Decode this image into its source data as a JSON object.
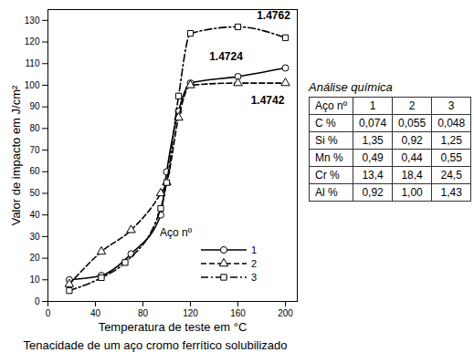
{
  "chart_data": {
    "type": "line",
    "title": "Tenacidade de um aço cromo ferrítico solubilizado",
    "x_label": "Temperatura de teste em °C",
    "y_label": "Valor de impacto em J/cm²",
    "xlim": [
      0,
      210
    ],
    "xticks": [
      0,
      40,
      80,
      120,
      160,
      200
    ],
    "ylim": [
      0,
      135
    ],
    "yticks": [
      0,
      10,
      20,
      30,
      40,
      50,
      60,
      70,
      80,
      90,
      100,
      110,
      120,
      130
    ],
    "grid": false,
    "legend": "bottom-right",
    "legend_title": "Aço nº",
    "series": [
      {
        "name": "1",
        "color": "#000000",
        "marker": "circle",
        "line_style": "solid",
        "x": [
          18,
          45,
          70,
          95,
          100,
          110,
          120,
          160,
          200
        ],
        "values": [
          10,
          12,
          22,
          40,
          60,
          88,
          101,
          104,
          108
        ]
      },
      {
        "name": "2",
        "color": "#000000",
        "marker": "triangle",
        "line_style": "dashed",
        "x": [
          18,
          45,
          70,
          95,
          100,
          110,
          120,
          160,
          200
        ],
        "values": [
          8,
          23,
          33,
          50,
          55,
          85,
          100,
          101,
          101
        ]
      },
      {
        "name": "3",
        "color": "#000000",
        "marker": "square",
        "line_style": "dashdot",
        "x": [
          18,
          45,
          65,
          95,
          100,
          110,
          120,
          160,
          200
        ],
        "values": [
          5,
          11,
          18,
          43,
          55,
          95,
          124,
          127,
          122
        ]
      }
    ],
    "annotations": [
      {
        "text": "1.4762",
        "x": 190,
        "y": 132
      },
      {
        "text": "1.4724",
        "x": 150,
        "y": 113
      },
      {
        "text": "1.4742",
        "x": 185,
        "y": 93
      }
    ]
  },
  "table": {
    "title": "Análise química",
    "header": [
      "Aço nº",
      "1",
      "2",
      "3"
    ],
    "rows": [
      [
        "C %",
        "0,074",
        "0,055",
        "0,048"
      ],
      [
        "Si %",
        "1,35",
        "0,92",
        "1,25"
      ],
      [
        "Mn %",
        "0,49",
        "0,44",
        "0,55"
      ],
      [
        "Cr %",
        "13,4",
        "18,4",
        "24,5"
      ],
      [
        "Al %",
        "0,92",
        "1,00",
        "1,43"
      ]
    ]
  }
}
